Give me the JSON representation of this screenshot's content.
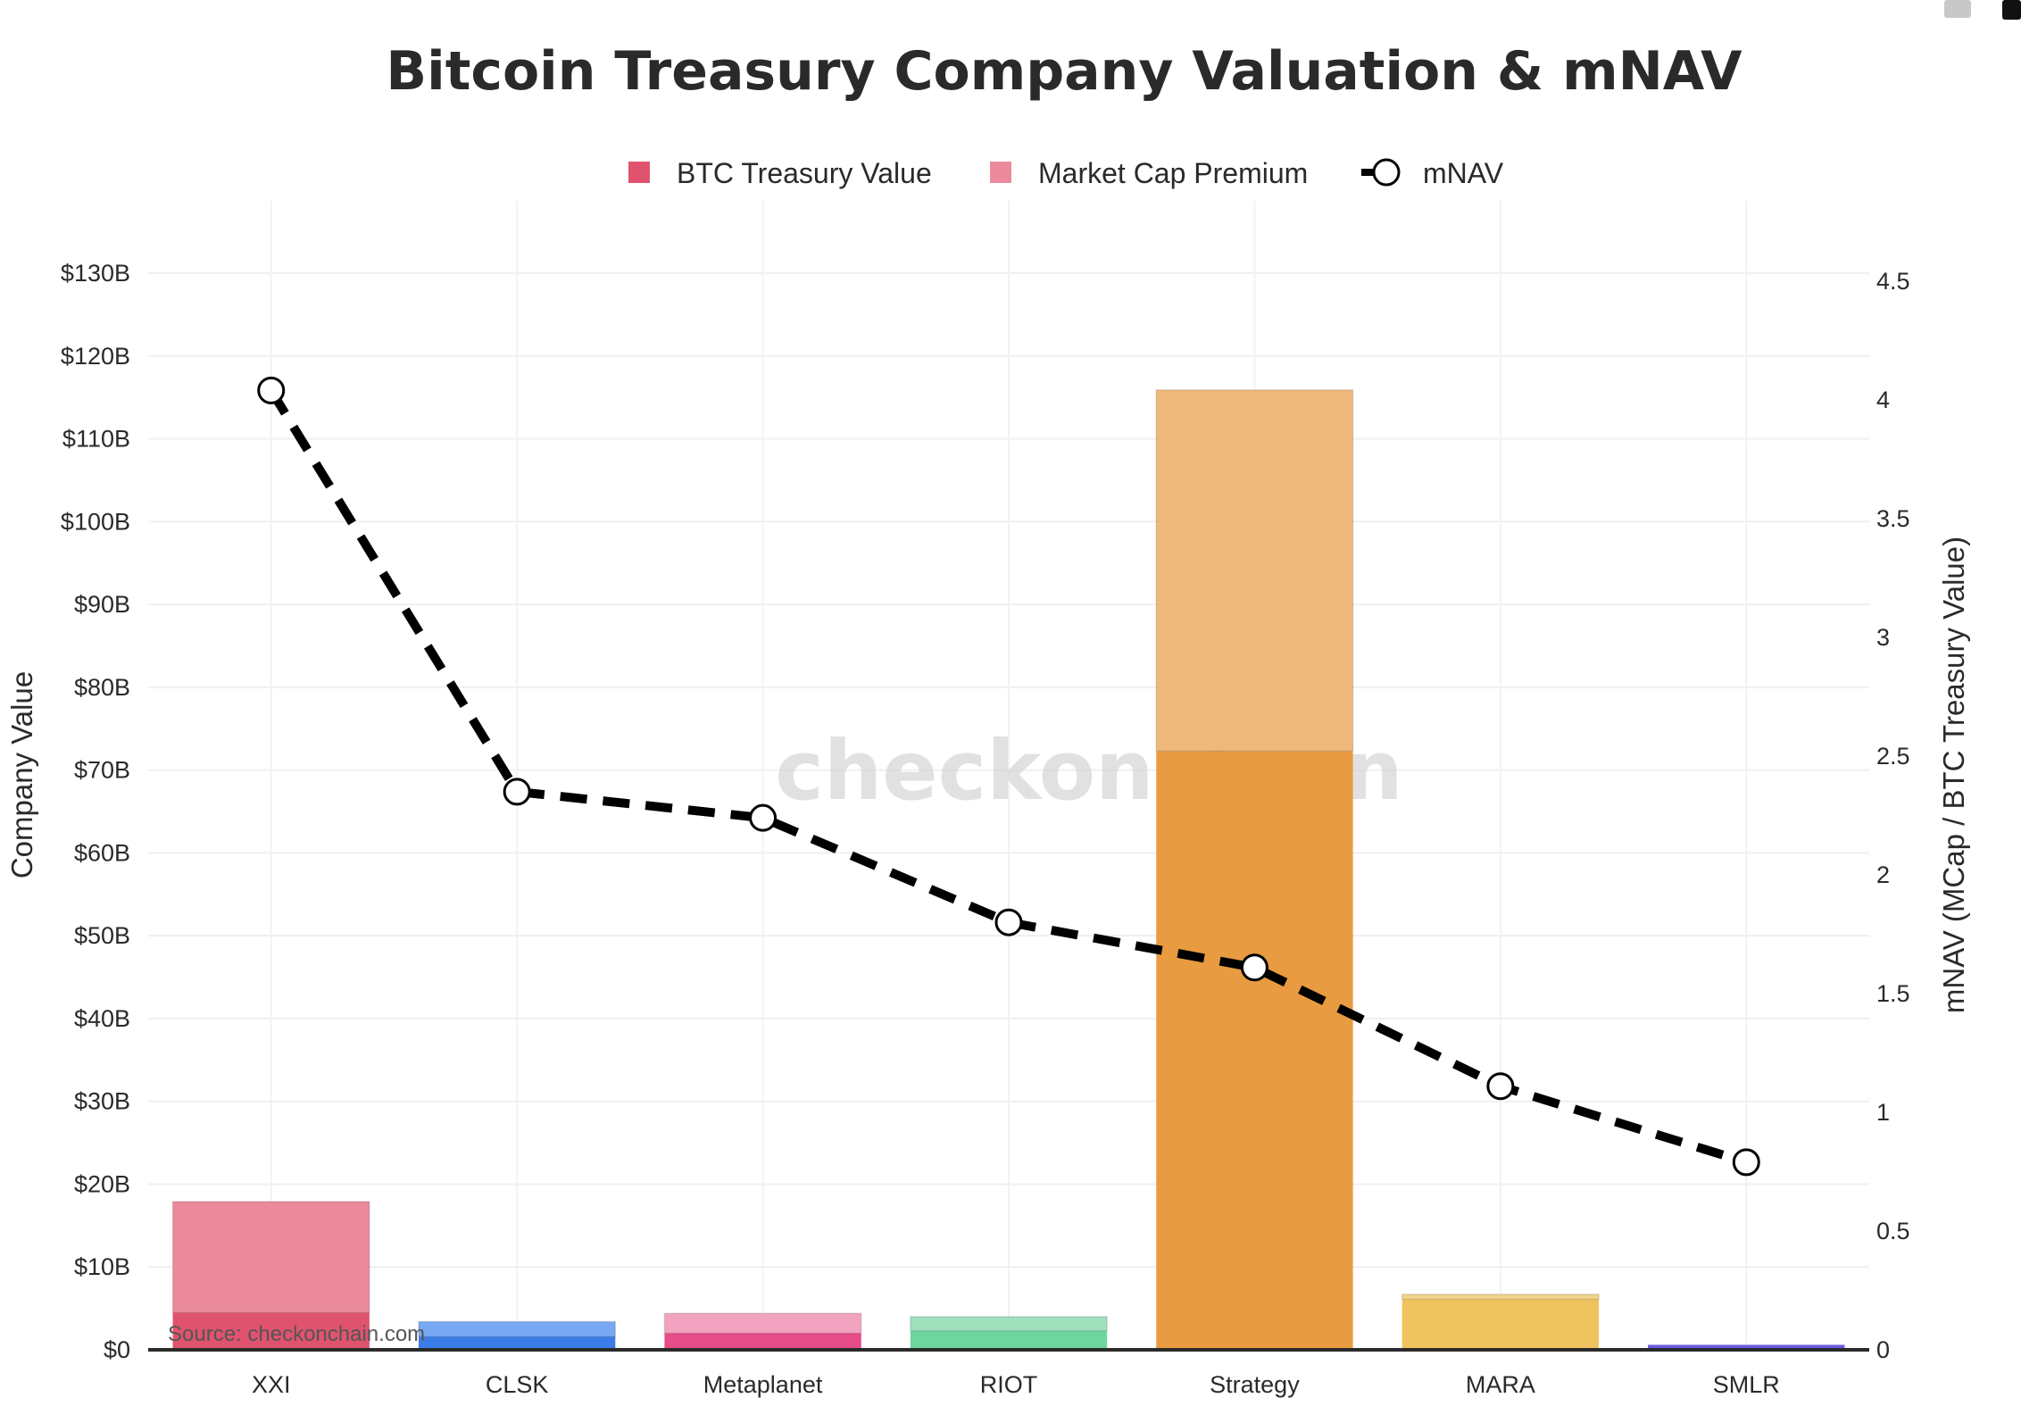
{
  "chart_data": {
    "type": "bar",
    "stacked": true,
    "title": "Bitcoin Treasury Company Valuation & mNAV",
    "categories": [
      "XXI",
      "CLSK",
      "Metaplanet",
      "RIOT",
      "Strategy",
      "MARA",
      "SMLR"
    ],
    "series": [
      {
        "name": "BTC Treasury Value",
        "unit": "USD billions",
        "values": [
          4.5,
          1.6,
          2.0,
          2.3,
          72.3,
          6.1,
          0.6
        ]
      },
      {
        "name": "Market Cap Premium",
        "unit": "USD billions",
        "values": [
          13.4,
          1.8,
          2.4,
          1.7,
          43.6,
          0.6,
          0.0
        ]
      },
      {
        "name": "mNAV",
        "type": "line",
        "axis": "right",
        "values": [
          4.04,
          2.35,
          2.24,
          1.8,
          1.61,
          1.11,
          0.79
        ]
      }
    ],
    "bar_colors": {
      "treasury": [
        "#e0536e",
        "#3b7de8",
        "#e64c88",
        "#6dd59d",
        "#e89b40",
        "#efc45f",
        "#6b5ce0"
      ],
      "premium": [
        "#eb8a9c",
        "#78a8f3",
        "#f2a3c0",
        "#9fe0bd",
        "#efb87b",
        "#f1d48b",
        "#8f84ea"
      ]
    },
    "legend_colors": {
      "treasury": "#e0536e",
      "premium": "#eb8a9c",
      "mnav": "#000000"
    },
    "ylabel": "Company Value",
    "y2label": "mNAV (MCap / BTC Treasury Value)",
    "ylim": [
      0,
      130
    ],
    "y2lim": [
      0,
      4.5
    ],
    "yticks": [
      "$0",
      "$10B",
      "$20B",
      "$30B",
      "$40B",
      "$50B",
      "$60B",
      "$70B",
      "$80B",
      "$90B",
      "$100B",
      "$110B",
      "$120B",
      "$130B"
    ],
    "y2ticks": [
      "0",
      "0.5",
      "1",
      "1.5",
      "2",
      "2.5",
      "3",
      "3.5",
      "4",
      "4.5"
    ],
    "grid": true,
    "legend_position": "top-center",
    "legend": [
      "BTC Treasury Value",
      "Market Cap Premium",
      "mNAV"
    ],
    "source": "Source: checkonchain.com",
    "watermark": "checkonchain"
  }
}
